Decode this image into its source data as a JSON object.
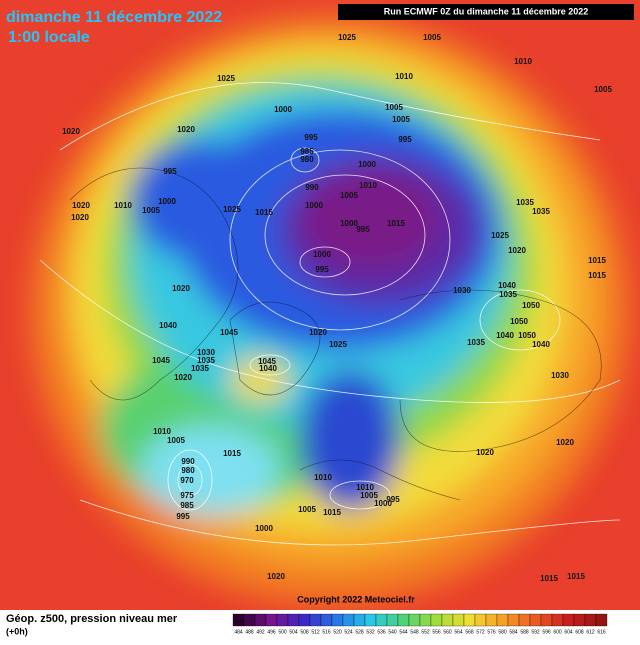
{
  "header": {
    "date": "dimanche 11 décembre 2022",
    "time": "1:00 locale",
    "run": "Run ECMWF 0Z du dimanche 11 décembre 2022"
  },
  "isobars": [
    1025,
    1005,
    1010,
    1005,
    1025,
    1010,
    1000,
    1005,
    1005,
    1020,
    1020,
    995,
    985,
    980,
    1000,
    995,
    995,
    990,
    1010,
    1005,
    1020,
    1010,
    1005,
    1000,
    1000,
    1025,
    1015,
    1035,
    1035,
    1020,
    1000,
    995,
    1015,
    1025,
    1020,
    1000,
    995,
    1015,
    1015,
    1030,
    1040,
    1035,
    1020,
    1050,
    1050,
    1020,
    1040,
    1045,
    1040,
    1050,
    1040,
    1025,
    1035,
    1030,
    1035,
    1045,
    1035,
    1045,
    1040,
    1020,
    1030,
    1010,
    1005,
    1015,
    1020,
    1020,
    990,
    980,
    970,
    1010,
    1010,
    1005,
    975,
    985,
    995,
    1000,
    995,
    1005,
    1015,
    1000,
    1020,
    1015,
    1015
  ],
  "footer": {
    "copyright": "Copyright 2022 Meteociel.fr",
    "legend": "Géop. z500, pression niveau mer",
    "step": "(+0h)"
  },
  "scale": [
    484,
    488,
    492,
    496,
    500,
    504,
    508,
    512,
    516,
    520,
    524,
    528,
    532,
    536,
    540,
    544,
    548,
    552,
    556,
    560,
    564,
    568,
    572,
    576,
    580,
    584,
    588,
    592,
    596,
    600,
    604,
    608,
    612,
    616
  ]
}
